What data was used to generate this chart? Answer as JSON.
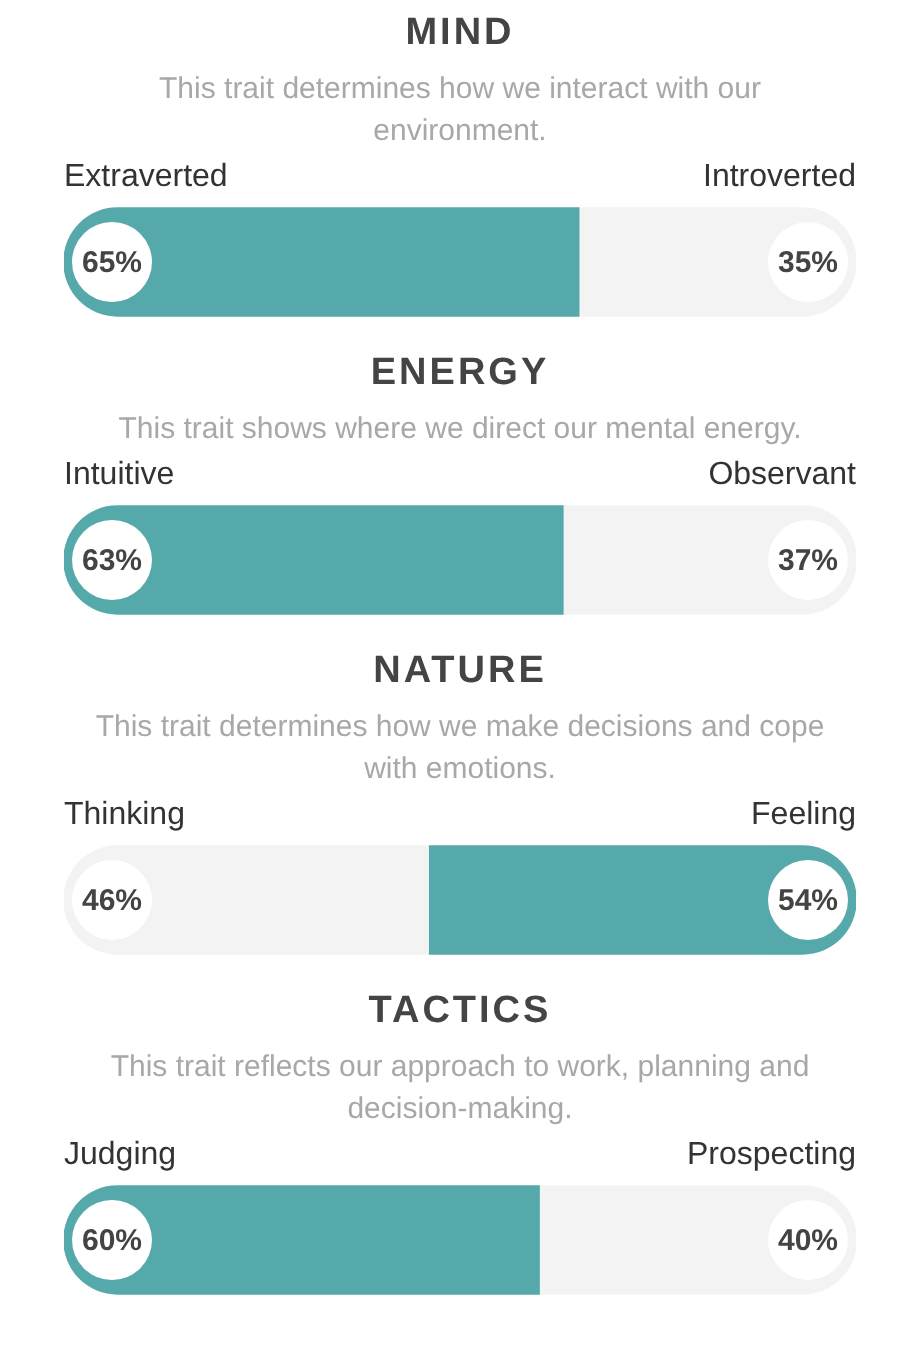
{
  "chart_data": [
    {
      "type": "bar",
      "orientation": "horizontal",
      "stacked": true,
      "title": "MIND",
      "subtitle": "This trait determines how we interact with our environment.",
      "categories": [
        null
      ],
      "tick_labels": false,
      "series": [
        {
          "name": "Extraverted",
          "color": "#56a9ab",
          "values": [
            65
          ],
          "value_labels": [
            "65%"
          ]
        },
        {
          "name": "Introverted",
          "color": "#f3f3f3",
          "values": [
            35
          ],
          "value_labels": [
            "35%"
          ]
        }
      ]
    },
    {
      "type": "bar",
      "orientation": "horizontal",
      "stacked": true,
      "title": "ENERGY",
      "subtitle": "This trait shows where we direct our mental energy.",
      "categories": [
        null
      ],
      "tick_labels": false,
      "series": [
        {
          "name": "Intuitive",
          "color": "#56a9ab",
          "values": [
            63
          ],
          "value_labels": [
            "63%"
          ]
        },
        {
          "name": "Observant",
          "color": "#f3f3f3",
          "values": [
            37
          ],
          "value_labels": [
            "37%"
          ]
        }
      ]
    },
    {
      "type": "bar",
      "orientation": "horizontal",
      "stacked": true,
      "title": "NATURE",
      "subtitle": "This trait determines how we make decisions and cope with emotions.",
      "categories": [
        null
      ],
      "tick_labels": false,
      "series": [
        {
          "name": "Thinking",
          "color": "#f3f3f3",
          "values": [
            46
          ],
          "value_labels": [
            "46%"
          ]
        },
        {
          "name": "Feeling",
          "color": "#56a9ab",
          "values": [
            54
          ],
          "value_labels": [
            "54%"
          ]
        }
      ]
    },
    {
      "type": "bar",
      "orientation": "horizontal",
      "stacked": true,
      "title": "TACTICS",
      "subtitle": "This trait reflects our approach to work, planning and decision-making.",
      "categories": [
        null
      ],
      "tick_labels": false,
      "series": [
        {
          "name": "Judging",
          "color": "#56a9ab",
          "values": [
            60
          ],
          "value_labels": [
            "60%"
          ]
        },
        {
          "name": "Prospecting",
          "color": "#f3f3f3",
          "values": [
            40
          ],
          "value_labels": [
            "40%"
          ]
        }
      ]
    }
  ]
}
